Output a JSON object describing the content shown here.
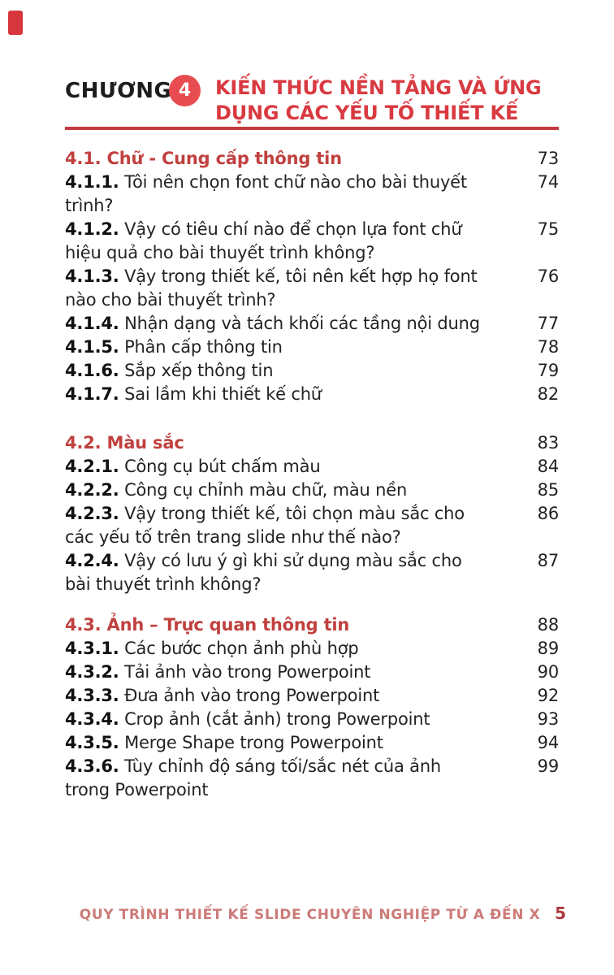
{
  "colors": {
    "accent": "#d93a41",
    "circle": "#e74c51",
    "rule": "#c33b41",
    "section": "#c0413f",
    "text": "#232323",
    "num_bold": "#111111",
    "footer_text": "#cc7b78",
    "footer_page": "#a83a3d",
    "corner_tag": "#d6363c"
  },
  "header": {
    "chapter_label": "CHƯƠNG",
    "chapter_number": "4",
    "title_line1": "KIẾN THỨC NỀN TẢNG VÀ ỨNG",
    "title_line2": "DỤNG CÁC YẾU TỐ THIẾT KẾ"
  },
  "toc": {
    "sections": [
      {
        "heading": {
          "num": "4.1.",
          "title": "Chữ - Cung cấp thông tin",
          "page": "73"
        },
        "items": [
          {
            "num": "4.1.1.",
            "line1": "Tôi nên chọn font chữ nào cho bài thuyết",
            "line2": "trình?",
            "page": "74"
          },
          {
            "num": "4.1.2.",
            "line1": "Vậy có tiêu chí nào để chọn lựa font chữ",
            "line2": "hiệu quả cho bài thuyết trình không?",
            "page": "75"
          },
          {
            "num": "4.1.3.",
            "line1": "Vậy trong thiết kế, tôi nên kết hợp họ font",
            "line2": "nào cho bài thuyết trình?",
            "page": "76"
          },
          {
            "num": "4.1.4.",
            "line1": "Nhận dạng và tách khối các tầng nội dung",
            "page": "77"
          },
          {
            "num": "4.1.5.",
            "line1": "Phân cấp thông tin",
            "page": "78"
          },
          {
            "num": "4.1.6.",
            "line1": "Sắp xếp thông tin",
            "page": "79"
          },
          {
            "num": "4.1.7.",
            "line1": "Sai lầm khi thiết kế chữ",
            "page": "82"
          }
        ]
      },
      {
        "heading": {
          "num": "4.2.",
          "title": "Màu sắc",
          "page": "83"
        },
        "items": [
          {
            "num": "4.2.1.",
            "line1": "Công cụ bút chấm màu",
            "page": "84"
          },
          {
            "num": "4.2.2.",
            "line1": "Công cụ chỉnh màu chữ, màu nền",
            "page": "85"
          },
          {
            "num": "4.2.3.",
            "line1": "Vậy trong thiết kế, tôi chọn màu sắc cho",
            "line2": "các yếu tố trên trang slide như thế nào?",
            "page": "86"
          },
          {
            "num": "4.2.4.",
            "line1": "Vậy có lưu ý gì khi sử dụng màu sắc cho",
            "line2": "bài thuyết trình không?",
            "page": "87"
          }
        ]
      },
      {
        "heading": {
          "num": "4.3.",
          "title": "Ảnh – Trực quan thông tin",
          "page": "88"
        },
        "items": [
          {
            "num": "4.3.1.",
            "line1": "Các bước chọn ảnh phù hợp",
            "page": "89"
          },
          {
            "num": "4.3.2.",
            "line1": "Tải ảnh vào trong Powerpoint",
            "page": "90"
          },
          {
            "num": "4.3.3.",
            "line1": "Đưa ảnh vào trong Powerpoint",
            "page": "92"
          },
          {
            "num": "4.3.4.",
            "line1": "Crop ảnh (cắt ảnh) trong Powerpoint",
            "page": "93"
          },
          {
            "num": "4.3.5.",
            "line1": "Merge Shape trong Powerpoint",
            "page": "94"
          },
          {
            "num": "4.3.6.",
            "line1": "Tùy chỉnh độ sáng tối/sắc nét của ảnh",
            "line2": "trong Powerpoint",
            "page": "99"
          }
        ]
      }
    ]
  },
  "footer": {
    "text": "QUY TRÌNH THIẾT KẾ SLIDE CHUYÊN NGHIỆP TỪ A ĐẾN X",
    "page_number": "5"
  }
}
